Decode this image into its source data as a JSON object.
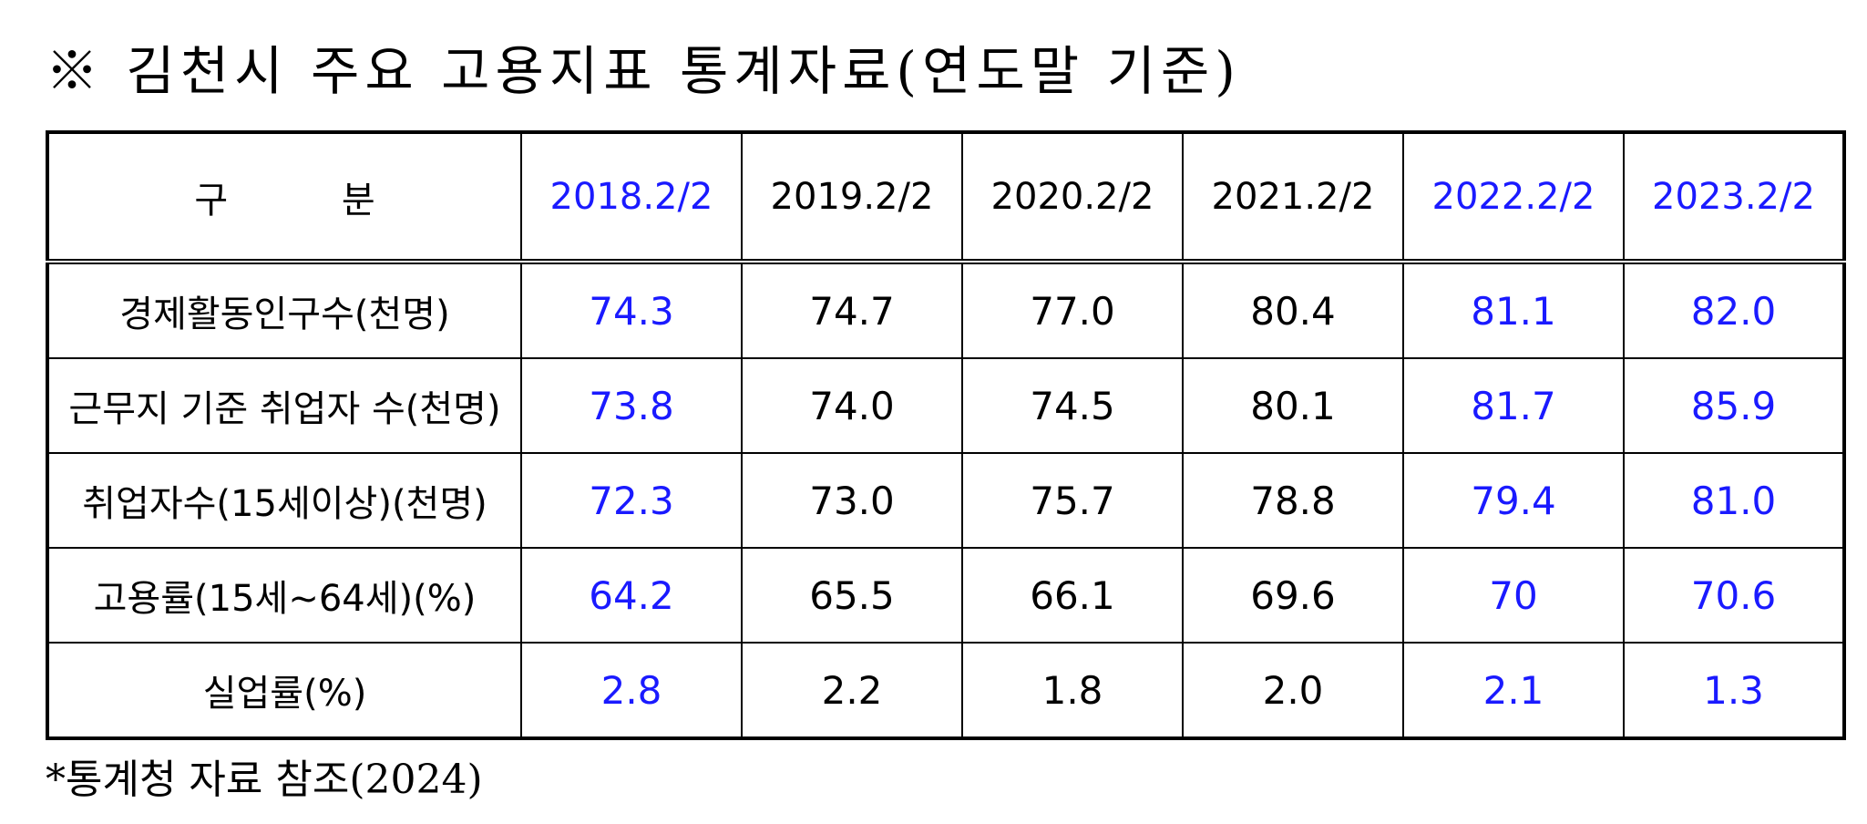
{
  "title": "※ 김천시 주요 고용지표 통계자료(연도말 기준)",
  "colors": {
    "highlight": "#1a1aff",
    "default": "#000000"
  },
  "table": {
    "header_label": "구 분",
    "columns": [
      "2018.2/2",
      "2019.2/2",
      "2020.2/2",
      "2021.2/2",
      "2022.2/2",
      "2023.2/2"
    ],
    "highlighted_columns": [
      0,
      4,
      5
    ],
    "rows": [
      {
        "label": "경제활동인구수(천명)",
        "values": [
          "74.3",
          "74.7",
          "77.0",
          "80.4",
          "81.1",
          "82.0"
        ]
      },
      {
        "label": "근무지 기준 취업자 수(천명)",
        "values": [
          "73.8",
          "74.0",
          "74.5",
          "80.1",
          "81.7",
          "85.9"
        ]
      },
      {
        "label": "취업자수(15세이상)(천명)",
        "values": [
          "72.3",
          "73.0",
          "75.7",
          "78.8",
          "79.4",
          "81.0"
        ]
      },
      {
        "label": "고용률(15세~64세)(%)",
        "values": [
          "64.2",
          "65.5",
          "66.1",
          "69.6",
          "70",
          "70.6"
        ]
      },
      {
        "label": "실업률(%)",
        "values": [
          "2.8",
          "2.2",
          "1.8",
          "2.0",
          "2.1",
          "1.3"
        ]
      }
    ]
  },
  "footnote": "*통계청 자료 참조(2024)"
}
